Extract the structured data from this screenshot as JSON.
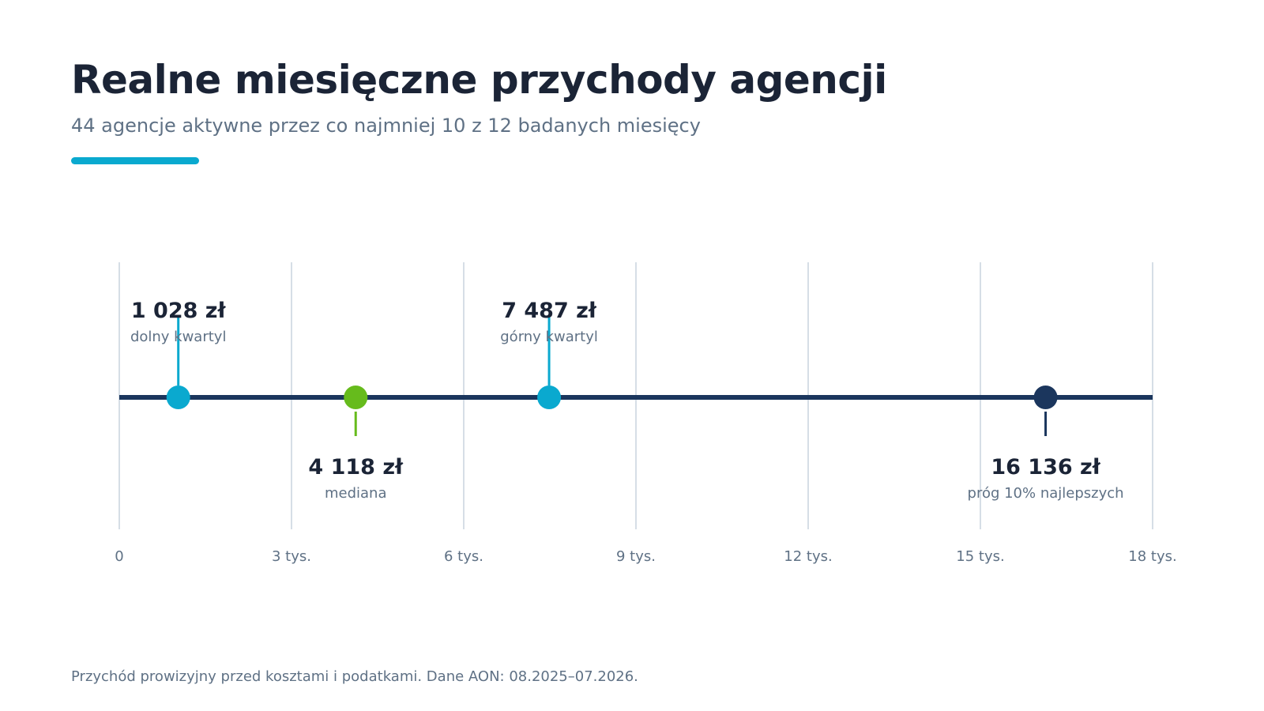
{
  "header": {
    "title": "Realne miesięczne przychody agencji",
    "subtitle": "44 agencje aktywne przez co najmniej 10 z 12 badanych miesięcy"
  },
  "footnote": "Przychód prowizyjny przed kosztami i podatkami. Dane AON: 08.2025–07.2026.",
  "colors": {
    "title": "#1b2436",
    "muted": "#5f7185",
    "accent": "#0aa9cf",
    "median": "#66bb1c",
    "axis_line": "#1b365d",
    "top10": "#1b365d",
    "grid": "#d6dee6"
  },
  "chart_data": {
    "type": "dot-strip",
    "xlim": [
      0,
      18000
    ],
    "ticks": [
      {
        "value": 0,
        "label": "0"
      },
      {
        "value": 3000,
        "label": "3 tys."
      },
      {
        "value": 6000,
        "label": "6 tys."
      },
      {
        "value": 9000,
        "label": "9 tys."
      },
      {
        "value": 12000,
        "label": "12 tys."
      },
      {
        "value": 15000,
        "label": "15 tys."
      },
      {
        "value": 18000,
        "label": "18 tys."
      }
    ],
    "grid": true,
    "points": [
      {
        "id": "lower-quartile",
        "value": 1028,
        "value_label": "1 028 zł",
        "label": "dolny kwartyl",
        "position": "above",
        "color": "#0aa9cf"
      },
      {
        "id": "median",
        "value": 4118,
        "value_label": "4 118 zł",
        "label": "mediana",
        "position": "below",
        "color": "#66bb1c"
      },
      {
        "id": "upper-quartile",
        "value": 7487,
        "value_label": "7 487 zł",
        "label": "górny kwartyl",
        "position": "above",
        "color": "#0aa9cf"
      },
      {
        "id": "top-10-threshold",
        "value": 16136,
        "value_label": "16 136 zł",
        "label": "próg 10% najlepszych",
        "position": "below",
        "color": "#1b365d"
      }
    ]
  }
}
